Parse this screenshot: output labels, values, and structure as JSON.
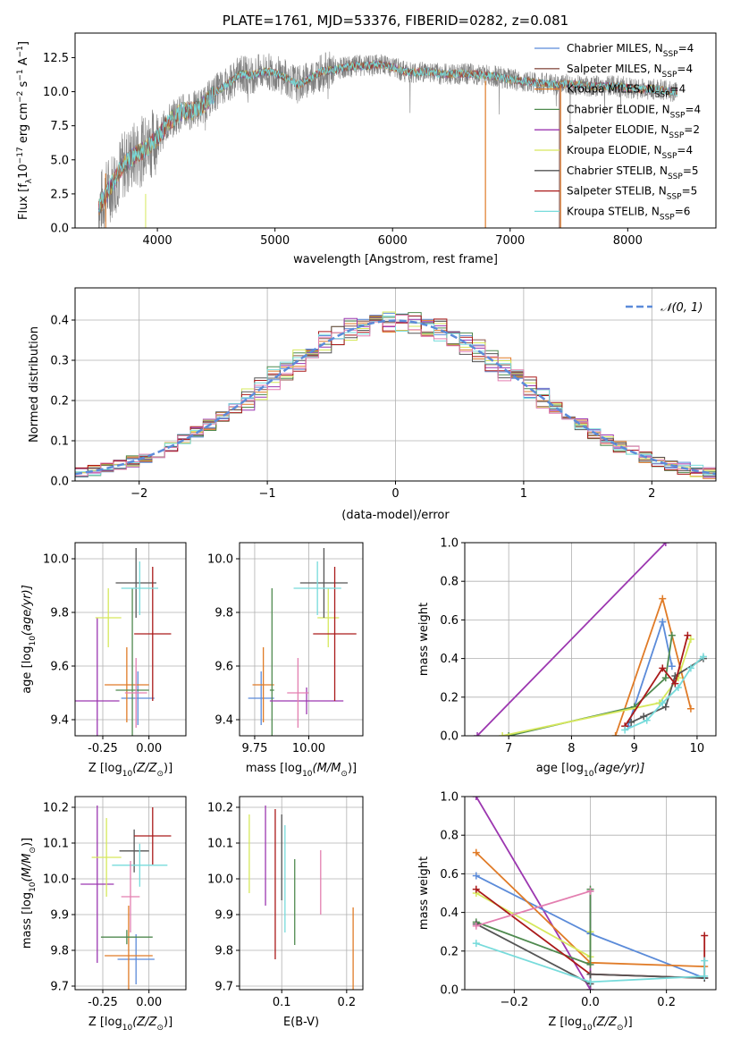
{
  "colors": {
    "Chabrier MILES": "#5b8bd9",
    "Salpeter MILES": "#8c564b",
    "Kroupa MILES": "#e07b27",
    "Chabrier ELODIE": "#4f8a4f",
    "Salpeter ELODIE": "#9c37b0",
    "Kroupa ELODIE": "#d6e85c",
    "Chabrier STELIB": "#555555",
    "Salpeter STELIB": "#aa1a1a",
    "Kroupa STELIB": "#77dbdb",
    "Pink": "#e37fb0",
    "Gaussian": "#5b8bd9"
  },
  "chart_data": [
    {
      "id": "spectrum",
      "type": "line",
      "title": "PLATE=1761, MJD=53376, FIBERID=0282, z=0.081",
      "xlabel": "wavelength [Angstrom, rest frame]",
      "ylabel_main": "Flux [f",
      "ylabel_sub": "λ",
      "ylabel_mid": "10",
      "ylabel_sup1": "−17",
      "ylabel_end": " erg cm",
      "ylabel_sup2": "−2",
      "ylabel_s": " s",
      "ylabel_sup3": "−1",
      "ylabel_A": " A",
      "ylabel_sup4": "−1",
      "ylabel_close": "]",
      "xlim": [
        3300,
        8750
      ],
      "ylim": [
        0,
        14.3
      ],
      "xticks": [
        4000,
        5000,
        6000,
        7000,
        8000
      ],
      "yticks": [
        0.0,
        2.5,
        5.0,
        7.5,
        10.0,
        12.5
      ],
      "profile": [
        [
          3500,
          1.5
        ],
        [
          3600,
          3.0
        ],
        [
          3700,
          4.5
        ],
        [
          3800,
          5.3
        ],
        [
          3900,
          5.8
        ],
        [
          4000,
          6.6
        ],
        [
          4100,
          7.8
        ],
        [
          4200,
          8.5
        ],
        [
          4300,
          8.6
        ],
        [
          4400,
          9.1
        ],
        [
          4500,
          10.0
        ],
        [
          4600,
          10.6
        ],
        [
          4700,
          11.3
        ],
        [
          4800,
          11.2
        ],
        [
          4900,
          11.5
        ],
        [
          5000,
          11.4
        ],
        [
          5100,
          11.0
        ],
        [
          5200,
          10.5
        ],
        [
          5300,
          11.0
        ],
        [
          5400,
          11.5
        ],
        [
          5500,
          11.6
        ],
        [
          5600,
          11.8
        ],
        [
          5700,
          11.9
        ],
        [
          5800,
          11.9
        ],
        [
          5900,
          12.0
        ],
        [
          6000,
          11.8
        ],
        [
          6100,
          11.5
        ],
        [
          6200,
          11.4
        ],
        [
          6300,
          11.5
        ],
        [
          6400,
          11.3
        ],
        [
          6500,
          11.3
        ],
        [
          6600,
          11.3
        ],
        [
          6700,
          11.3
        ],
        [
          6800,
          11.2
        ],
        [
          6900,
          11.1
        ],
        [
          7000,
          10.9
        ],
        [
          7100,
          10.8
        ],
        [
          7200,
          10.7
        ],
        [
          7300,
          10.6
        ],
        [
          7400,
          10.5
        ],
        [
          7500,
          10.6
        ],
        [
          7600,
          10.5
        ],
        [
          7700,
          10.4
        ],
        [
          7800,
          10.4
        ],
        [
          7900,
          10.4
        ],
        [
          8000,
          10.3
        ],
        [
          8100,
          10.2
        ],
        [
          8200,
          10.2
        ],
        [
          8300,
          10.1
        ],
        [
          8400,
          10.0
        ]
      ],
      "legend": [
        {
          "label": "Chabrier MILES, N",
          "sub": "SSP",
          "val": "=4"
        },
        {
          "label": "Salpeter MILES, N",
          "sub": "SSP",
          "val": "=4"
        },
        {
          "label": "Kroupa MILES, N",
          "sub": "SSP",
          "val": "=4"
        },
        {
          "label": "Chabrier ELODIE, N",
          "sub": "SSP",
          "val": "=4"
        },
        {
          "label": "Salpeter ELODIE, N",
          "sub": "SSP",
          "val": "=2"
        },
        {
          "label": "Kroupa ELODIE, N",
          "sub": "SSP",
          "val": "=4"
        },
        {
          "label": "Chabrier STELIB, N",
          "sub": "SSP",
          "val": "=5"
        },
        {
          "label": "Salpeter STELIB, N",
          "sub": "SSP",
          "val": "=5"
        },
        {
          "label": "Kroupa STELIB, N",
          "sub": "SSP",
          "val": "=6"
        }
      ],
      "legend_colors": [
        "#5b8bd9",
        "#8c564b",
        "#e07b27",
        "#4f8a4f",
        "#9c37b0",
        "#d6e85c",
        "#555555",
        "#aa1a1a",
        "#77dbdb"
      ],
      "legend_position": "right"
    },
    {
      "id": "residuals",
      "type": "histogram",
      "xlabel": "(data-model)/error",
      "ylabel": "Normed distribution",
      "xlim": [
        -2.5,
        2.5
      ],
      "ylim": [
        0,
        0.48
      ],
      "xticks": [
        -2,
        -1,
        0,
        1,
        2
      ],
      "yticks": [
        0.0,
        0.1,
        0.2,
        0.3,
        0.4
      ],
      "grid": true,
      "bin_width": 0.1,
      "legend": "𝒩(0, 1)",
      "legend_position": "top-right"
    },
    {
      "id": "age-vs-Z",
      "type": "errorbar",
      "xlabel": "Z [log",
      "xlabel_sub": "10",
      "xlabel_end": "(Z/Z",
      "xlabel_sun": "⊙",
      "xlabel_close": ")]",
      "ylabel": "age  [log",
      "ylabel_sub": "10",
      "ylabel_end": "(age/yr)]",
      "xlim": [
        -0.4,
        0.2
      ],
      "ylim": [
        9.34,
        10.06
      ],
      "xticks": [
        "-0.25",
        "0.00"
      ],
      "xtick_values": [
        -0.25,
        0.0
      ],
      "yticks": [
        "9.4",
        "9.6",
        "9.8",
        "10.0"
      ],
      "ytick_values": [
        9.4,
        9.6,
        9.8,
        10.0
      ],
      "grid": true,
      "points": [
        {
          "x": -0.06,
          "y": 9.48,
          "xerr": 0.09,
          "yerr": 0.1,
          "color": "#5b8bd9"
        },
        {
          "x": -0.12,
          "y": 9.53,
          "xerr": 0.12,
          "yerr": 0.14,
          "color": "#e07b27"
        },
        {
          "x": -0.09,
          "y": 9.51,
          "xerr": 0.09,
          "yerr": 0.38,
          "color": "#4f8a4f"
        },
        {
          "x": -0.28,
          "y": 9.47,
          "xerr": 0.12,
          "yerr": 0.31,
          "color": "#9c37b0"
        },
        {
          "x": -0.22,
          "y": 9.78,
          "xerr": 0.07,
          "yerr": 0.11,
          "color": "#d6e85c"
        },
        {
          "x": -0.07,
          "y": 9.91,
          "xerr": 0.11,
          "yerr": 0.13,
          "color": "#555555"
        },
        {
          "x": 0.02,
          "y": 9.72,
          "xerr": 0.1,
          "yerr": 0.25,
          "color": "#aa1a1a"
        },
        {
          "x": -0.05,
          "y": 9.89,
          "xerr": 0.1,
          "yerr": 0.1,
          "color": "#77dbdb"
        },
        {
          "x": -0.07,
          "y": 9.5,
          "xerr": 0.06,
          "yerr": 0.13,
          "color": "#e37fb0"
        }
      ]
    },
    {
      "id": "age-vs-mass",
      "type": "errorbar",
      "xlabel": "mass [log",
      "xlabel_sub": "10",
      "xlabel_end": "(M/M",
      "xlabel_sun": "⊙",
      "xlabel_close": ")]",
      "xlim": [
        9.68,
        10.25
      ],
      "ylim": [
        9.34,
        10.06
      ],
      "xticks": [
        "9.75",
        "10.00"
      ],
      "xtick_values": [
        9.75,
        10.0
      ],
      "yticks": [
        "9.4",
        "9.6",
        "9.8",
        "10.0"
      ],
      "ytick_values": [
        9.4,
        9.6,
        9.8,
        10.0
      ],
      "grid": true,
      "points": [
        {
          "x": 9.78,
          "y": 9.48,
          "xerr": 0.06,
          "yerr": 0.1,
          "color": "#5b8bd9"
        },
        {
          "x": 9.79,
          "y": 9.53,
          "xerr": 0.05,
          "yerr": 0.14,
          "color": "#e07b27"
        },
        {
          "x": 9.83,
          "y": 9.51,
          "xerr": 0.01,
          "yerr": 0.38,
          "color": "#4f8a4f"
        },
        {
          "x": 9.99,
          "y": 9.47,
          "xerr": 0.17,
          "yerr": 0.05,
          "color": "#9c37b0"
        },
        {
          "x": 10.09,
          "y": 9.78,
          "xerr": 0.05,
          "yerr": 0.11,
          "color": "#d6e85c"
        },
        {
          "x": 10.07,
          "y": 9.91,
          "xerr": 0.11,
          "yerr": 0.13,
          "color": "#555555"
        },
        {
          "x": 10.12,
          "y": 9.72,
          "xerr": 0.1,
          "yerr": 0.25,
          "color": "#aa1a1a"
        },
        {
          "x": 10.04,
          "y": 9.89,
          "xerr": 0.11,
          "yerr": 0.1,
          "color": "#77dbdb"
        },
        {
          "x": 9.95,
          "y": 9.5,
          "xerr": 0.05,
          "yerr": 0.13,
          "color": "#e37fb0"
        }
      ]
    },
    {
      "id": "weight-vs-age",
      "type": "line",
      "xlabel": "age  [log",
      "xlabel_sub": "10",
      "xlabel_end": "(age/yr)]",
      "ylabel": "mass weight",
      "xlim": [
        6.3,
        10.3
      ],
      "ylim": [
        0,
        1.0
      ],
      "xticks": [
        "7",
        "8",
        "9",
        "10"
      ],
      "xtick_values": [
        7,
        8,
        9,
        10
      ],
      "yticks": [
        "0.0",
        "0.2",
        "0.4",
        "0.6",
        "0.8",
        "1.0"
      ],
      "ytick_values": [
        0.0,
        0.2,
        0.4,
        0.6,
        0.8,
        1.0
      ],
      "grid": true,
      "series": [
        {
          "color": "#9c37b0",
          "x": [
            6.5,
            9.5
          ],
          "y": [
            0.0,
            1.0
          ]
        },
        {
          "color": "#5b8bd9",
          "x": [
            8.9,
            9.45,
            9.6
          ],
          "y": [
            0.05,
            0.59,
            0.36
          ]
        },
        {
          "color": "#e07b27",
          "x": [
            8.7,
            9.45,
            9.9
          ],
          "y": [
            0.0,
            0.71,
            0.14
          ]
        },
        {
          "color": "#4f8a4f",
          "x": [
            7.0,
            9.0,
            9.5,
            9.6
          ],
          "y": [
            0.0,
            0.15,
            0.3,
            0.52
          ]
        },
        {
          "color": "#d6e85c",
          "x": [
            6.9,
            9.4,
            9.7,
            9.9
          ],
          "y": [
            0.0,
            0.17,
            0.3,
            0.5
          ]
        },
        {
          "color": "#555555",
          "x": [
            8.95,
            9.15,
            9.5,
            9.65,
            10.1
          ],
          "y": [
            0.07,
            0.1,
            0.15,
            0.31,
            0.4
          ]
        },
        {
          "color": "#aa1a1a",
          "x": [
            8.85,
            9.45,
            9.65,
            9.85
          ],
          "y": [
            0.05,
            0.35,
            0.27,
            0.52
          ]
        },
        {
          "color": "#77dbdb",
          "x": [
            8.85,
            9.2,
            9.45,
            9.7,
            9.9,
            10.1
          ],
          "y": [
            0.03,
            0.08,
            0.17,
            0.25,
            0.35,
            0.41
          ]
        }
      ]
    },
    {
      "id": "mass-vs-Z",
      "type": "errorbar",
      "xlabel": "Z [log",
      "xlabel_sub": "10",
      "xlabel_end": "(Z/Z",
      "xlabel_sun": "⊙",
      "xlabel_close": ")]",
      "ylabel": "mass [log",
      "ylabel_sub": "10",
      "ylabel_end": "(M/M",
      "ylabel_sun": "⊙",
      "ylabel_close": ")]",
      "xlim": [
        -0.4,
        0.2
      ],
      "ylim": [
        9.69,
        10.23
      ],
      "xticks": [
        "-0.25",
        "0.00"
      ],
      "xtick_values": [
        -0.25,
        0.0
      ],
      "yticks": [
        "9.7",
        "9.8",
        "9.9",
        "10.0",
        "10.1",
        "10.2"
      ],
      "ytick_values": [
        9.7,
        9.8,
        9.9,
        10.0,
        10.1,
        10.2
      ],
      "grid": true,
      "points": [
        {
          "x": -0.07,
          "y": 9.775,
          "xerr": 0.1,
          "yerr": 0.07,
          "color": "#5b8bd9"
        },
        {
          "x": -0.11,
          "y": 9.785,
          "xerr": 0.13,
          "yerr": 0.14,
          "color": "#e07b27"
        },
        {
          "x": -0.12,
          "y": 9.837,
          "xerr": 0.14,
          "yerr": 0.02,
          "color": "#4f8a4f"
        },
        {
          "x": -0.28,
          "y": 9.985,
          "xerr": 0.09,
          "yerr": 0.22,
          "color": "#9c37b0"
        },
        {
          "x": -0.23,
          "y": 10.06,
          "xerr": 0.08,
          "yerr": 0.11,
          "color": "#d6e85c"
        },
        {
          "x": -0.08,
          "y": 10.078,
          "xerr": 0.08,
          "yerr": 0.06,
          "color": "#555555"
        },
        {
          "x": 0.02,
          "y": 10.12,
          "xerr": 0.1,
          "yerr": 0.08,
          "color": "#aa1a1a"
        },
        {
          "x": -0.05,
          "y": 10.038,
          "xerr": 0.15,
          "yerr": 0.06,
          "color": "#77dbdb"
        },
        {
          "x": -0.1,
          "y": 9.95,
          "xerr": 0.05,
          "yerr": 0.1,
          "color": "#e37fb0"
        }
      ]
    },
    {
      "id": "mass-vs-ebv",
      "type": "errorbar",
      "xlabel": "E(B-V)",
      "xlim": [
        0.035,
        0.225
      ],
      "ylim": [
        9.69,
        10.23
      ],
      "xticks": [
        "0.1",
        "0.2"
      ],
      "xtick_values": [
        0.1,
        0.2
      ],
      "yticks": [
        "9.7",
        "9.8",
        "9.9",
        "10.0",
        "10.1",
        "10.2"
      ],
      "ytick_values": [
        9.7,
        9.8,
        9.9,
        10.0,
        10.1,
        10.2
      ],
      "grid": true,
      "points": [
        {
          "x": 0.05,
          "y": 10.07,
          "yerr": 0.11,
          "color": "#d6e85c"
        },
        {
          "x": 0.075,
          "y": 10.065,
          "yerr": 0.14,
          "color": "#9c37b0"
        },
        {
          "x": 0.09,
          "y": 9.985,
          "yerr": 0.21,
          "color": "#aa1a1a"
        },
        {
          "x": 0.1,
          "y": 10.06,
          "yerr": 0.12,
          "color": "#555555"
        },
        {
          "x": 0.105,
          "y": 10.0,
          "yerr": 0.15,
          "color": "#77dbdb"
        },
        {
          "x": 0.12,
          "y": 9.935,
          "yerr": 0.12,
          "color": "#4f8a4f"
        },
        {
          "x": 0.16,
          "y": 9.99,
          "yerr": 0.09,
          "color": "#e37fb0"
        },
        {
          "x": 0.21,
          "y": 9.79,
          "yerr": 0.13,
          "color": "#e07b27"
        }
      ]
    },
    {
      "id": "weight-vs-Z",
      "type": "line",
      "xlabel": "Z [log",
      "xlabel_sub": "10",
      "xlabel_end": "(Z/Z",
      "xlabel_sun": "⊙",
      "xlabel_close": ")]",
      "ylabel": "mass weight",
      "xlim": [
        -0.33,
        0.33
      ],
      "ylim": [
        0,
        1.0
      ],
      "xticks": [
        "−0.2",
        "0.0",
        "0.2"
      ],
      "xtick_values": [
        -0.2,
        0.0,
        0.2
      ],
      "yticks": [
        "0.0",
        "0.2",
        "0.4",
        "0.6",
        "0.8",
        "1.0"
      ],
      "ytick_values": [
        0.0,
        0.2,
        0.4,
        0.6,
        0.8,
        1.0
      ],
      "grid": true,
      "series": [
        {
          "color": "#9c37b0",
          "x": [
            -0.3,
            0.0,
            0.0
          ],
          "y": [
            1.0,
            0.0,
            0.51
          ]
        },
        {
          "color": "#5b8bd9",
          "x": [
            -0.3,
            0.0,
            0.3
          ],
          "y": [
            0.59,
            0.29,
            0.06
          ]
        },
        {
          "color": "#e07b27",
          "x": [
            -0.3,
            0.0,
            0.3
          ],
          "y": [
            0.71,
            0.14,
            0.12
          ]
        },
        {
          "color": "#d6e85c",
          "x": [
            -0.3,
            0.0,
            0.0
          ],
          "y": [
            0.5,
            0.17,
            0.3
          ]
        },
        {
          "color": "#4f8a4f",
          "x": [
            -0.3,
            0.0,
            0.0
          ],
          "y": [
            0.35,
            0.13,
            0.52
          ]
        },
        {
          "color": "#aa1a1a",
          "x": [
            -0.3,
            0.0,
            0.3,
            0.3
          ],
          "y": [
            0.52,
            0.08,
            0.06,
            0.28
          ]
        },
        {
          "color": "#555555",
          "x": [
            -0.3,
            0.0,
            0.0,
            0.3
          ],
          "y": [
            0.34,
            0.03,
            0.08,
            0.06
          ]
        },
        {
          "color": "#77dbdb",
          "x": [
            -0.3,
            0.0,
            0.3,
            0.3
          ],
          "y": [
            0.24,
            0.04,
            0.07,
            0.15
          ]
        },
        {
          "color": "#e37fb0",
          "x": [
            -0.3,
            0.0
          ],
          "y": [
            0.33,
            0.51
          ]
        }
      ]
    }
  ]
}
